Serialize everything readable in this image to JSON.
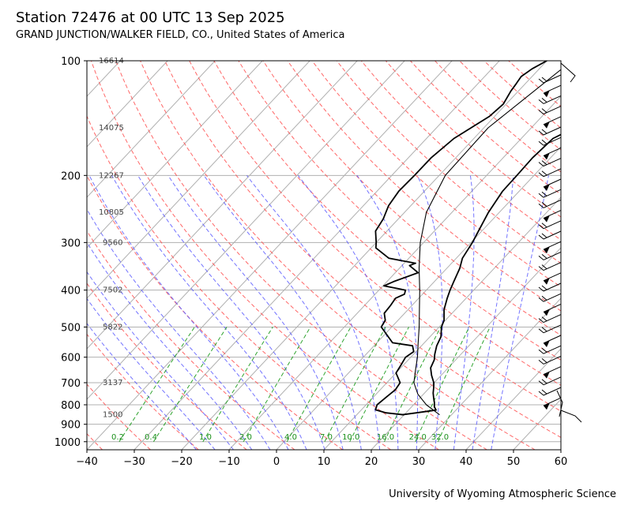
{
  "header": {
    "title": "Station 72476 at 00 UTC 13 Sep 2025",
    "subtitle": "GRAND JUNCTION/WALKER FIELD, CO., United States of America"
  },
  "footer": {
    "credit": "University of Wyoming Atmospheric Science"
  },
  "chart_data": {
    "type": "skew-t log-p",
    "title": "Station 72476 at 00 UTC 13 Sep 2025",
    "x_axis": {
      "label": "",
      "range": [
        -40,
        60
      ],
      "ticks": [
        -40,
        -30,
        -20,
        -10,
        0,
        10,
        20,
        30,
        40,
        50,
        60
      ]
    },
    "y_axis": {
      "label": "",
      "range": [
        1050,
        100
      ],
      "scale": "log",
      "ticks": [
        100,
        200,
        300,
        400,
        500,
        600,
        700,
        800,
        900,
        1000
      ]
    },
    "grid": true,
    "height_labels": [
      {
        "p": 100,
        "text": "16614"
      },
      {
        "p": 150,
        "text": "14075"
      },
      {
        "p": 200,
        "text": "12267"
      },
      {
        "p": 250,
        "text": "10805"
      },
      {
        "p": 300,
        "text": "9560"
      },
      {
        "p": 400,
        "text": "7502"
      },
      {
        "p": 500,
        "text": "5822"
      },
      {
        "p": 700,
        "text": "3137"
      },
      {
        "p": 850,
        "text": "1500"
      }
    ],
    "mixing_ratio_labels": [
      {
        "x": -33.5,
        "text": "0.2"
      },
      {
        "x": -26.5,
        "text": "0.4"
      },
      {
        "x": -15,
        "text": "1.0"
      },
      {
        "x": -6.5,
        "text": "2.0"
      },
      {
        "x": 3,
        "text": "4.0"
      },
      {
        "x": 10.5,
        "text": "7.0"
      },
      {
        "x": 15.7,
        "text": "10.0"
      },
      {
        "x": 23,
        "text": "16.0"
      },
      {
        "x": 29.8,
        "text": "24.0"
      },
      {
        "x": 34.5,
        "text": "32.0"
      }
    ],
    "series": [
      {
        "name": "",
        "kind": "temperature",
        "points": [
          [
            850,
            19.5
          ],
          [
            840,
            22.2
          ],
          [
            826,
            25.8
          ],
          [
            810,
            24.8
          ],
          [
            790,
            24.0
          ],
          [
            770,
            23.0
          ],
          [
            745,
            21.8
          ],
          [
            720,
            20.8
          ],
          [
            700,
            19.9
          ],
          [
            670,
            18.0
          ],
          [
            640,
            16.3
          ],
          [
            610,
            15.5
          ],
          [
            590,
            14.5
          ],
          [
            560,
            13.2
          ],
          [
            530,
            12.3
          ],
          [
            500,
            10.5
          ],
          [
            480,
            9.7
          ],
          [
            450,
            7.6
          ],
          [
            420,
            6.0
          ],
          [
            400,
            5.0
          ],
          [
            380,
            4.1
          ],
          [
            350,
            2.7
          ],
          [
            330,
            1.3
          ],
          [
            300,
            0.3
          ],
          [
            280,
            -0.7
          ],
          [
            250,
            -2.3
          ],
          [
            220,
            -3.5
          ],
          [
            200,
            -3.6
          ],
          [
            180,
            -3.8
          ],
          [
            160,
            -3.3
          ],
          [
            150,
            -0.9
          ],
          [
            140,
            0.5
          ],
          [
            130,
            2.5
          ],
          [
            120,
            2.7
          ],
          [
            110,
            2.5
          ],
          [
            105,
            2.1
          ],
          [
            100,
            1.3
          ]
        ]
      },
      {
        "name": "",
        "kind": "dewpoint",
        "points": [
          [
            850,
            20.0
          ],
          [
            840,
            15.8
          ],
          [
            825,
            13.0
          ],
          [
            800,
            12.3
          ],
          [
            760,
            12.8
          ],
          [
            730,
            13.2
          ],
          [
            700,
            12.8
          ],
          [
            660,
            10.0
          ],
          [
            630,
            9.5
          ],
          [
            600,
            8.9
          ],
          [
            580,
            9.5
          ],
          [
            560,
            8.1
          ],
          [
            550,
            3.3
          ],
          [
            500,
            -2.2
          ],
          [
            480,
            -2.7
          ],
          [
            460,
            -4.3
          ],
          [
            440,
            -4.5
          ],
          [
            420,
            -4.9
          ],
          [
            410,
            -3.8
          ],
          [
            400,
            -4.4
          ],
          [
            390,
            -9.8
          ],
          [
            380,
            -8.6
          ],
          [
            360,
            -5.2
          ],
          [
            345,
            -8.4
          ],
          [
            340,
            -7.6
          ],
          [
            330,
            -14.2
          ],
          [
            310,
            -19.0
          ],
          [
            300,
            -20.0
          ],
          [
            280,
            -22.4
          ],
          [
            260,
            -23.2
          ],
          [
            240,
            -24.7
          ],
          [
            220,
            -25.4
          ],
          [
            200,
            -25.2
          ],
          [
            180,
            -25.2
          ],
          [
            160,
            -24.2
          ],
          [
            140,
            -21.1
          ],
          [
            130,
            -20.6
          ],
          [
            120,
            -21.6
          ],
          [
            115,
            -21.9
          ],
          [
            110,
            -22.3
          ],
          [
            105,
            -21.5
          ],
          [
            100,
            -20.0
          ]
        ]
      },
      {
        "name": "",
        "kind": "parcel",
        "points": [
          [
            850,
            27.5
          ],
          [
            800,
            22.7
          ],
          [
            750,
            18.8
          ],
          [
            700,
            15.7
          ],
          [
            650,
            13.6
          ],
          [
            600,
            11.4
          ],
          [
            550,
            8.7
          ],
          [
            500,
            5.8
          ],
          [
            450,
            2.4
          ],
          [
            400,
            -1.4
          ],
          [
            350,
            -5.9
          ],
          [
            300,
            -10.7
          ],
          [
            250,
            -15.4
          ],
          [
            200,
            -18.7
          ],
          [
            150,
            -19.1
          ],
          [
            100,
            -14.7
          ]
        ]
      }
    ],
    "wind_barbs_present": true
  }
}
